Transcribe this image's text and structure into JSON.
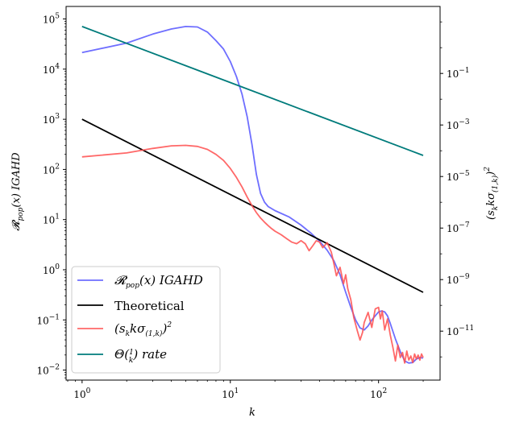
{
  "chart_data": {
    "type": "line",
    "xscale": "log",
    "xlim": [
      0.78,
      260
    ],
    "xlabel": "k",
    "xticks": [
      {
        "mantissa": "10",
        "exp": "0"
      },
      {
        "mantissa": "10",
        "exp": "1"
      },
      {
        "mantissa": "10",
        "exp": "2"
      }
    ],
    "left_axis": {
      "label": "𝓡pop(x) IGAHD",
      "scale": "log",
      "ylim_exp": [
        -2.2,
        5.25
      ],
      "ticks": [
        {
          "mantissa": "10",
          "exp": "5"
        },
        {
          "mantissa": "10",
          "exp": "4"
        },
        {
          "mantissa": "10",
          "exp": "3"
        },
        {
          "mantissa": "10",
          "exp": "2"
        },
        {
          "mantissa": "10",
          "exp": "1"
        },
        {
          "mantissa": "10",
          "exp": "0"
        },
        {
          "mantissa": "10",
          "exp": "−1"
        },
        {
          "mantissa": "10",
          "exp": "−2"
        }
      ]
    },
    "right_axis": {
      "label": "(s_k kσ(1,k))²",
      "scale": "log",
      "ylim_exp": [
        -12.9,
        1.6
      ],
      "ticks": [
        {
          "mantissa": "10",
          "exp": "−1"
        },
        {
          "mantissa": "10",
          "exp": "−3"
        },
        {
          "mantissa": "10",
          "exp": "−5"
        },
        {
          "mantissa": "10",
          "exp": "−7"
        },
        {
          "mantissa": "10",
          "exp": "−9"
        },
        {
          "mantissa": "10",
          "exp": "−11"
        }
      ]
    },
    "series": [
      {
        "name": "𝓡pop(x) IGAHD",
        "color": "#6666ff",
        "axis": "left",
        "x": [
          1,
          2,
          3,
          4,
          5,
          6,
          7,
          8,
          9,
          10,
          11,
          12,
          13,
          14,
          15,
          16,
          17,
          18,
          20,
          25,
          30,
          35,
          40,
          45,
          50,
          55,
          60,
          65,
          70,
          75,
          80,
          85,
          90,
          100,
          105,
          110,
          115,
          120,
          130,
          140,
          150,
          160,
          170,
          180,
          190,
          200
        ],
        "y_exp": [
          4.33,
          4.52,
          4.7,
          4.8,
          4.85,
          4.84,
          4.74,
          4.57,
          4.4,
          4.15,
          3.85,
          3.5,
          3.05,
          2.5,
          1.9,
          1.52,
          1.35,
          1.26,
          1.18,
          1.05,
          0.89,
          0.73,
          0.57,
          0.39,
          0.18,
          -0.1,
          -0.45,
          -0.75,
          -1.0,
          -1.16,
          -1.2,
          -1.12,
          -1.0,
          -0.84,
          -0.82,
          -0.84,
          -0.92,
          -1.07,
          -1.38,
          -1.63,
          -1.82,
          -1.86,
          -1.85,
          -1.78,
          -1.75,
          -1.76
        ]
      },
      {
        "name": "Theoretical",
        "color": "#000000",
        "axis": "left",
        "x": [
          1,
          200
        ],
        "y_exp": [
          3.0,
          -0.45
        ]
      },
      {
        "name": "(s_k kσ(1,k))²",
        "color": "#ff4d4d",
        "axis": "left",
        "x": [
          1,
          2,
          3,
          4,
          5,
          6,
          7,
          8,
          9,
          10,
          11,
          12,
          13,
          14,
          15,
          16,
          17,
          18,
          19,
          20,
          22,
          24,
          26,
          28,
          30,
          32,
          34,
          36,
          38,
          40,
          42,
          45,
          48,
          50,
          52,
          55,
          58,
          60,
          62,
          65,
          68,
          72,
          75,
          78,
          80,
          85,
          90,
          95,
          100,
          103,
          106,
          110,
          115,
          120,
          125,
          130,
          135,
          140,
          145,
          150,
          155,
          160,
          165,
          170,
          175,
          180,
          185,
          190,
          195,
          200
        ],
        "y_exp": [
          2.25,
          2.33,
          2.42,
          2.47,
          2.48,
          2.46,
          2.4,
          2.3,
          2.18,
          2.02,
          1.84,
          1.65,
          1.45,
          1.28,
          1.14,
          1.03,
          0.95,
          0.88,
          0.82,
          0.77,
          0.7,
          0.62,
          0.55,
          0.52,
          0.58,
          0.52,
          0.38,
          0.48,
          0.58,
          0.55,
          0.44,
          0.54,
          0.35,
          0.12,
          -0.12,
          0.05,
          -0.28,
          -0.1,
          -0.38,
          -0.6,
          -0.95,
          -1.22,
          -1.4,
          -1.25,
          -1.05,
          -0.85,
          -1.15,
          -0.78,
          -0.75,
          -0.98,
          -0.82,
          -1.2,
          -0.98,
          -1.3,
          -1.55,
          -1.82,
          -1.5,
          -1.75,
          -1.65,
          -1.86,
          -1.62,
          -1.8,
          -1.72,
          -1.85,
          -1.68,
          -1.78,
          -1.7,
          -1.8,
          -1.68,
          -1.75
        ]
      },
      {
        "name": "Θ(1/k) rate",
        "color": "#007b7b",
        "axis": "left",
        "x": [
          1,
          200
        ],
        "y_exp": [
          4.85,
          2.28
        ]
      }
    ],
    "legend": {
      "position": "bottom-left",
      "entries": [
        {
          "math": "𝓡pop(x) IGAHD"
        },
        {
          "text": "Theoretical"
        },
        {
          "math": "(s_k kσ(1,k))²"
        },
        {
          "math": "Θ(1/k) rate"
        }
      ]
    }
  }
}
